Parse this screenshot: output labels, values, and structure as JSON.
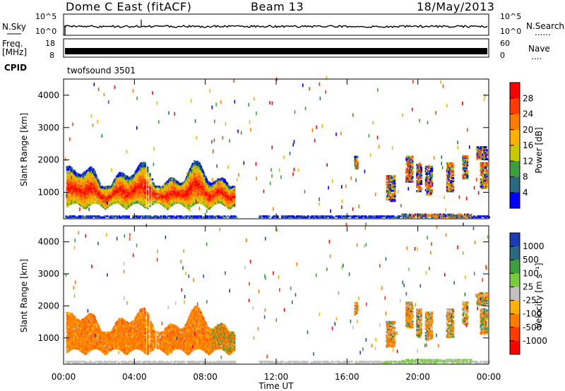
{
  "header": {
    "title": "Dome C East (fitACF)",
    "beam": "Beam 13",
    "date": "18/May/2013"
  },
  "params": {
    "nsky_label": "N.Sky",
    "nsearch_label": "N.Search",
    "nsearch_dots": "......",
    "freq_label": "Freq.",
    "freq_unit": "[MHz]",
    "nave_label": "Nave",
    "nave_dots": "....",
    "cpid_label": "CPID",
    "cpid_value": "twofsound 3501",
    "nsky_ticks": [
      "10^5",
      "10^0"
    ],
    "nsearch_ticks": [
      "10^5",
      "10^0"
    ],
    "freq_ticks": [
      "18",
      "8"
    ],
    "nave_ticks": [
      "60",
      "0"
    ]
  },
  "chart_data": [
    {
      "type": "heatmap",
      "name": "power",
      "ylabel": "Slant Range [km]",
      "ylim": [
        180,
        4500
      ],
      "yticks": [
        "1000",
        "2000",
        "3000",
        "4000"
      ],
      "xlim": [
        0,
        24
      ],
      "colorbar": {
        "label": "Power [dB]",
        "ticks": [
          "28",
          "24",
          "20",
          "16",
          "12",
          "8",
          "4"
        ],
        "colors": [
          "#ff0000",
          "#ff3b00",
          "#ff7a00",
          "#ffb000",
          "#c8c800",
          "#3c9e3c",
          "#2a6a80",
          "#0000ff"
        ]
      }
    },
    {
      "type": "heatmap",
      "name": "velocity",
      "ylabel": "Slant Range [km]",
      "ylim": [
        180,
        4500
      ],
      "yticks": [
        "1000",
        "2000",
        "3000",
        "4000"
      ],
      "xlim": [
        0,
        24
      ],
      "xlabel": "Time UT",
      "xticks": [
        "00:00",
        "04:00",
        "08:00",
        "12:00",
        "16:00",
        "20:00",
        "00:00"
      ],
      "colorbar": {
        "label": "Velocity [m s⁻¹]",
        "ticks": [
          "1000",
          "500",
          "100",
          "25",
          "-25",
          "-100",
          "-500",
          "-1000"
        ],
        "colors": [
          "#1a3cb4",
          "#2a6a80",
          "#3c9e3c",
          "#7acc3c",
          "#c0c0c0",
          "#ffb000",
          "#ff7a00",
          "#ff3b00",
          "#ff0000"
        ]
      }
    }
  ]
}
